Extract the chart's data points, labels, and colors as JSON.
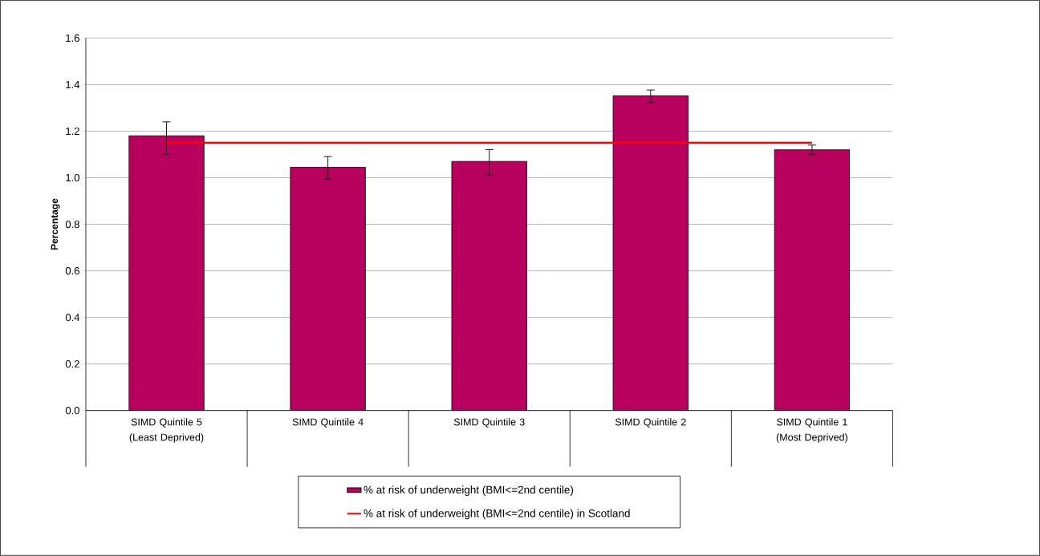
{
  "chart_data": {
    "type": "bar",
    "ylabel": "Percentage",
    "categories": [
      "SIMD Quintile 5 (Least Deprived)",
      "SIMD Quintile 4",
      "SIMD Quintile 3",
      "SIMD Quintile 2",
      "SIMD Quintile 1 (Most Deprived)"
    ],
    "series": [
      {
        "name": "% at risk of underweight (BMI<=2nd centile)",
        "color": "#b8005f",
        "values": [
          1.18,
          1.045,
          1.07,
          1.352,
          1.12
        ],
        "errors": [
          [
            1.1,
            1.24
          ],
          [
            0.994,
            1.091
          ],
          [
            1.012,
            1.121
          ],
          [
            1.323,
            1.377
          ],
          [
            1.1,
            1.14
          ]
        ]
      },
      {
        "name": "% at risk of underweight (BMI<=2nd centile) in Scotland",
        "type": "line",
        "color": "#ff0000",
        "values": [
          1.15,
          1.15,
          1.15,
          1.15,
          1.15
        ]
      }
    ],
    "ylim": [
      0,
      1.6
    ],
    "yticks": [
      {
        "value": 0,
        "label": "0.0"
      },
      0.2,
      0.4,
      0.6,
      0.8,
      {
        "value": 1,
        "label": "1.0"
      },
      1.2,
      1.4,
      1.6
    ],
    "grid": "y",
    "legend": "bottom"
  }
}
